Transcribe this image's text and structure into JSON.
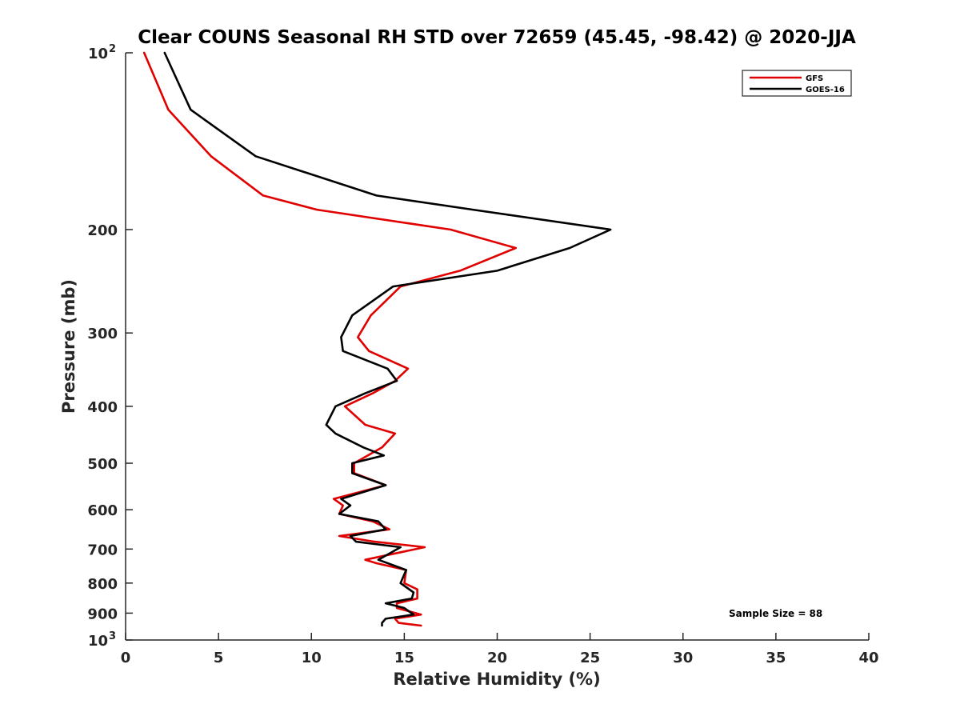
{
  "chart_data": {
    "type": "line",
    "title": "Clear COUNS Seasonal RH STD over 72659 (45.45, -98.42) @ 2020-JJA",
    "xlabel": "Relative Humidity (%)",
    "ylabel": "Pressure (mb)",
    "xlim": [
      0,
      40
    ],
    "ylim": [
      100,
      1000
    ],
    "yscale": "log",
    "y_reversed": true,
    "grid": false,
    "legend_position": "top-right",
    "x_ticks": [
      {
        "value": 0,
        "label": "0"
      },
      {
        "value": 5,
        "label": "5"
      },
      {
        "value": 10,
        "label": "10"
      },
      {
        "value": 15,
        "label": "15"
      },
      {
        "value": 20,
        "label": "20"
      },
      {
        "value": 25,
        "label": "25"
      },
      {
        "value": 30,
        "label": "30"
      },
      {
        "value": 35,
        "label": "35"
      },
      {
        "value": 40,
        "label": "40"
      }
    ],
    "y_ticks": [
      {
        "value": 100,
        "label": "10",
        "sup": "2"
      },
      {
        "value": 200,
        "label": "200",
        "sup": ""
      },
      {
        "value": 300,
        "label": "300",
        "sup": ""
      },
      {
        "value": 400,
        "label": "400",
        "sup": ""
      },
      {
        "value": 500,
        "label": "500",
        "sup": ""
      },
      {
        "value": 600,
        "label": "600",
        "sup": ""
      },
      {
        "value": 700,
        "label": "700",
        "sup": ""
      },
      {
        "value": 800,
        "label": "800",
        "sup": ""
      },
      {
        "value": 900,
        "label": "900",
        "sup": ""
      },
      {
        "value": 1000,
        "label": "10",
        "sup": "3"
      }
    ],
    "series": [
      {
        "name": "GFS",
        "color": "#e00000",
        "points": [
          [
            1.0,
            100
          ],
          [
            2.3,
            125
          ],
          [
            4.6,
            150
          ],
          [
            7.4,
            175
          ],
          [
            10.3,
            185
          ],
          [
            17.5,
            200
          ],
          [
            21.0,
            215
          ],
          [
            18.0,
            235
          ],
          [
            14.8,
            250
          ],
          [
            13.2,
            280
          ],
          [
            12.5,
            305
          ],
          [
            13.1,
            322
          ],
          [
            15.2,
            345
          ],
          [
            14.5,
            362
          ],
          [
            13.3,
            380
          ],
          [
            11.8,
            400
          ],
          [
            12.9,
            430
          ],
          [
            14.5,
            445
          ],
          [
            13.8,
            470
          ],
          [
            12.3,
            500
          ],
          [
            12.3,
            520
          ],
          [
            14.0,
            545
          ],
          [
            11.2,
            575
          ],
          [
            11.7,
            590
          ],
          [
            11.5,
            610
          ],
          [
            13.3,
            628
          ],
          [
            14.2,
            648
          ],
          [
            11.5,
            665
          ],
          [
            13.4,
            680
          ],
          [
            16.1,
            695
          ],
          [
            12.9,
            730
          ],
          [
            13.5,
            740
          ],
          [
            15.1,
            760
          ],
          [
            15.0,
            800
          ],
          [
            15.7,
            820
          ],
          [
            15.7,
            850
          ],
          [
            14.6,
            866
          ],
          [
            14.6,
            882
          ],
          [
            15.9,
            905
          ],
          [
            14.5,
            920
          ],
          [
            14.7,
            935
          ],
          [
            15.9,
            945
          ]
        ]
      },
      {
        "name": "GOES-16",
        "color": "#000000",
        "points": [
          [
            2.1,
            100
          ],
          [
            3.5,
            125
          ],
          [
            7.0,
            150
          ],
          [
            13.5,
            175
          ],
          [
            18.7,
            185
          ],
          [
            26.1,
            200
          ],
          [
            23.9,
            215
          ],
          [
            20.0,
            235
          ],
          [
            14.4,
            250
          ],
          [
            12.2,
            280
          ],
          [
            11.6,
            305
          ],
          [
            11.7,
            322
          ],
          [
            14.1,
            345
          ],
          [
            14.6,
            362
          ],
          [
            12.9,
            380
          ],
          [
            11.3,
            400
          ],
          [
            10.8,
            430
          ],
          [
            11.3,
            445
          ],
          [
            12.8,
            470
          ],
          [
            13.9,
            485
          ],
          [
            12.2,
            500
          ],
          [
            12.2,
            520
          ],
          [
            14.0,
            545
          ],
          [
            11.6,
            575
          ],
          [
            12.1,
            590
          ],
          [
            11.5,
            610
          ],
          [
            13.6,
            628
          ],
          [
            14.0,
            648
          ],
          [
            12.1,
            665
          ],
          [
            12.4,
            680
          ],
          [
            14.8,
            695
          ],
          [
            13.6,
            730
          ],
          [
            15.1,
            760
          ],
          [
            14.8,
            800
          ],
          [
            15.5,
            830
          ],
          [
            15.4,
            850
          ],
          [
            14.0,
            866
          ],
          [
            15.0,
            882
          ],
          [
            15.5,
            905
          ],
          [
            14.0,
            920
          ],
          [
            13.8,
            935
          ],
          [
            13.8,
            945
          ]
        ]
      }
    ],
    "annotations": [
      {
        "text": "Sample Size = 88"
      }
    ]
  }
}
